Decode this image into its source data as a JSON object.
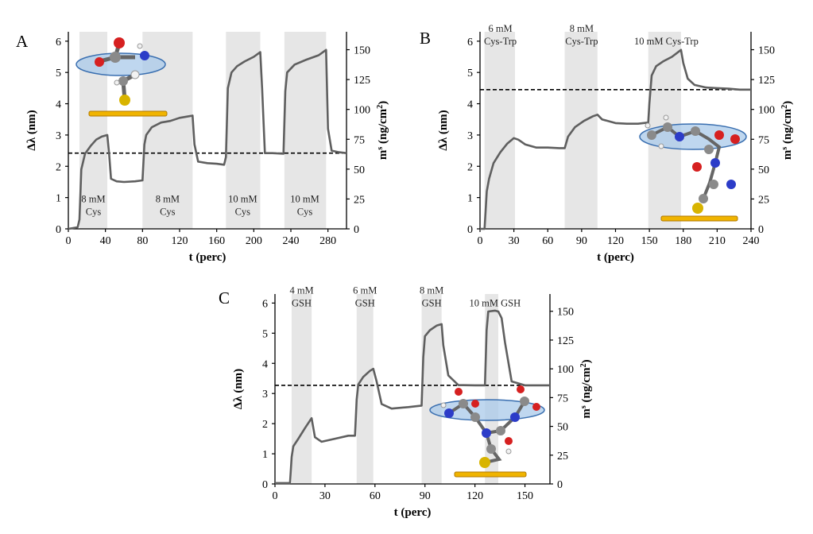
{
  "chart_data": [
    {
      "panel": "A",
      "type": "line",
      "xlabel": "t (perc)",
      "ylabel_left": "Δλ (nm)",
      "ylabel_right_base": "m",
      "ylabel_right_sup": "s",
      "ylabel_right_unit": " (ng/cm",
      "ylabel_right_unit_sup": "2",
      "ylabel_right_close": ")",
      "xlim": [
        0,
        300
      ],
      "ylim": [
        0,
        6.3
      ],
      "xticks": [
        0,
        40,
        80,
        120,
        160,
        200,
        240,
        280
      ],
      "yticks_left": [
        0,
        1,
        2,
        3,
        4,
        5,
        6
      ],
      "yticks_right": [
        0,
        25,
        50,
        75,
        100,
        125,
        150
      ],
      "right_axis_factor": 26.19,
      "baseline_dashed": 2.42,
      "shaded_intervals": [
        [
          12,
          42
        ],
        [
          80,
          134
        ],
        [
          170,
          207
        ],
        [
          233,
          278
        ]
      ],
      "annotations": [
        {
          "lines": [
            "8 mM",
            "Cys"
          ],
          "x": 27,
          "y": 0.55
        },
        {
          "lines": [
            "8 mM",
            "Cys"
          ],
          "x": 107,
          "y": 0.55
        },
        {
          "lines": [
            "10 mM",
            "Cys"
          ],
          "x": 188,
          "y": 0.55
        },
        {
          "lines": [
            "10 mM",
            "Cys"
          ],
          "x": 255,
          "y": 0.55
        }
      ],
      "series": [
        {
          "name": "Δλ",
          "x": [
            0,
            10,
            12,
            14,
            18,
            24,
            30,
            36,
            42,
            44,
            46,
            52,
            60,
            72,
            80,
            82,
            84,
            90,
            100,
            110,
            120,
            130,
            134,
            136,
            140,
            150,
            160,
            168,
            170,
            172,
            176,
            182,
            190,
            200,
            207,
            209,
            212,
            220,
            232,
            234,
            236,
            244,
            256,
            270,
            278,
            280,
            284,
            292,
            300
          ],
          "y": [
            0.0,
            0.05,
            0.3,
            1.9,
            2.4,
            2.65,
            2.85,
            2.95,
            3.0,
            2.4,
            1.6,
            1.52,
            1.5,
            1.52,
            1.55,
            2.7,
            3.0,
            3.25,
            3.4,
            3.45,
            3.55,
            3.6,
            3.62,
            2.7,
            2.15,
            2.1,
            2.08,
            2.05,
            2.3,
            4.5,
            5.0,
            5.2,
            5.35,
            5.5,
            5.65,
            4.5,
            2.42,
            2.42,
            2.4,
            4.4,
            5.0,
            5.25,
            5.4,
            5.55,
            5.72,
            3.2,
            2.5,
            2.45,
            2.42
          ]
        }
      ]
    },
    {
      "panel": "B",
      "type": "line",
      "xlabel": "t (perc)",
      "ylabel_left": "Δλ (nm)",
      "ylabel_right_base": "m",
      "ylabel_right_sup": "s",
      "ylabel_right_unit": " (ng/cm",
      "ylabel_right_unit_sup": "2",
      "ylabel_right_close": ")",
      "xlim": [
        0,
        240
      ],
      "ylim": [
        0,
        6.3
      ],
      "xticks": [
        0,
        30,
        60,
        90,
        120,
        150,
        180,
        210,
        240
      ],
      "yticks_left": [
        0,
        1,
        2,
        3,
        4,
        5,
        6
      ],
      "yticks_right": [
        0,
        25,
        50,
        75,
        100,
        125,
        150
      ],
      "right_axis_factor": 26.19,
      "baseline_dashed": 4.45,
      "shaded_intervals": [
        [
          4,
          31
        ],
        [
          75,
          104
        ],
        [
          149,
          178
        ]
      ],
      "annotations": [
        {
          "lines": [
            "6 mM",
            "Cys-Trp"
          ],
          "x": 18,
          "y": 6.0
        },
        {
          "lines": [
            "8 mM",
            "Cys-Trp"
          ],
          "x": 90,
          "y": 6.0
        },
        {
          "lines": [
            "10 mM Cys-Trp"
          ],
          "x": 165,
          "y": 6.0
        }
      ],
      "series": [
        {
          "name": "Δλ",
          "x": [
            0,
            4,
            6,
            8,
            12,
            18,
            24,
            30,
            34,
            40,
            50,
            60,
            70,
            75,
            78,
            84,
            92,
            100,
            104,
            108,
            120,
            130,
            140,
            149,
            150,
            152,
            156,
            162,
            170,
            178,
            180,
            184,
            190,
            200,
            210,
            220,
            230,
            240
          ],
          "y": [
            0.0,
            0.0,
            1.2,
            1.6,
            2.1,
            2.45,
            2.72,
            2.9,
            2.85,
            2.7,
            2.6,
            2.6,
            2.58,
            2.58,
            2.95,
            3.25,
            3.45,
            3.6,
            3.65,
            3.5,
            3.38,
            3.36,
            3.36,
            3.4,
            4.0,
            4.9,
            5.2,
            5.35,
            5.5,
            5.72,
            5.3,
            4.8,
            4.6,
            4.52,
            4.5,
            4.48,
            4.45,
            4.45
          ]
        }
      ]
    },
    {
      "panel": "C",
      "type": "line",
      "xlabel": "t (perc)",
      "ylabel_left": "Δλ (nm)",
      "ylabel_right_base": "m",
      "ylabel_right_sup": "s",
      "ylabel_right_unit": " (ng/cm",
      "ylabel_right_unit_sup": "2",
      "ylabel_right_close": ")",
      "xlim": [
        0,
        165
      ],
      "ylim": [
        0,
        6.3
      ],
      "xticks": [
        0,
        30,
        60,
        90,
        120,
        150
      ],
      "yticks_left": [
        0,
        1,
        2,
        3,
        4,
        5,
        6
      ],
      "yticks_right": [
        0,
        25,
        50,
        75,
        100,
        125,
        150
      ],
      "right_axis_factor": 26.19,
      "baseline_dashed": 3.27,
      "shaded_intervals": [
        [
          10,
          22
        ],
        [
          49,
          59
        ],
        [
          88,
          100
        ],
        [
          126,
          134
        ]
      ],
      "annotations": [
        {
          "lines": [
            "4 mM",
            "GSH"
          ],
          "x": 16,
          "y": 6.0
        },
        {
          "lines": [
            "6 mM",
            "GSH"
          ],
          "x": 54,
          "y": 6.0
        },
        {
          "lines": [
            "8 mM",
            "GSH"
          ],
          "x": 94,
          "y": 6.0
        },
        {
          "lines": [
            "10 mM GSH"
          ],
          "x": 132,
          "y": 6.0
        }
      ],
      "series": [
        {
          "name": "Δλ",
          "x": [
            0,
            9,
            10,
            11,
            14,
            18,
            21,
            22,
            24,
            28,
            36,
            44,
            48,
            49,
            50,
            53,
            57,
            59,
            61,
            64,
            70,
            80,
            88,
            89,
            90,
            93,
            97,
            100,
            101,
            104,
            110,
            120,
            126,
            127,
            128,
            132,
            134,
            136,
            138,
            142,
            150,
            165
          ],
          "y": [
            0.03,
            0.03,
            0.9,
            1.25,
            1.5,
            1.85,
            2.1,
            2.18,
            1.55,
            1.4,
            1.5,
            1.6,
            1.6,
            2.8,
            3.3,
            3.55,
            3.75,
            3.82,
            3.4,
            2.65,
            2.5,
            2.55,
            2.6,
            4.2,
            4.9,
            5.1,
            5.25,
            5.3,
            4.6,
            3.6,
            3.28,
            3.27,
            3.27,
            5.1,
            5.72,
            5.75,
            5.72,
            5.5,
            4.7,
            3.4,
            3.27,
            3.27
          ]
        }
      ]
    }
  ]
}
